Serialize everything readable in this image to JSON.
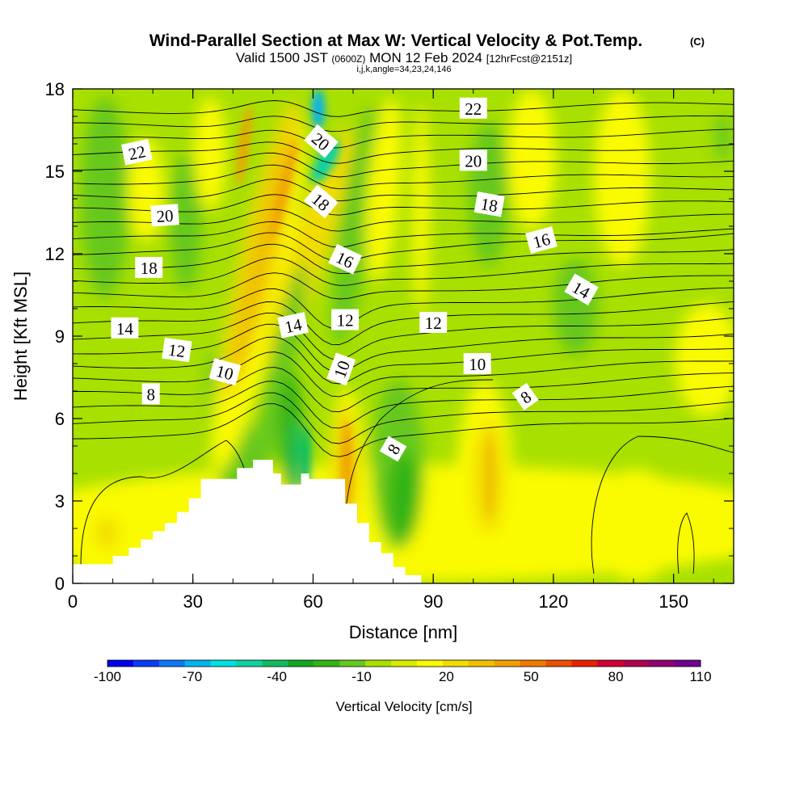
{
  "chart_data": {
    "type": "heatmap",
    "title": "Wind-Parallel Section at Max W: Vertical Velocity & Pot.Temp.",
    "title_mark": "(C)",
    "subtitle_valid": "Valid 1500 JST",
    "subtitle_utc": "(0600Z)",
    "subtitle_date": "MON 12 Feb 2024",
    "subtitle_fcst": "[12hrFcst@2151z]",
    "subtitle_grid": "i,j,k,angle=34,23,24,146",
    "xlabel": "Distance [nm]",
    "ylabel": "Height [Kft MSL]",
    "xlim": [
      0,
      165
    ],
    "ylim": [
      0,
      18
    ],
    "xticks": [
      0,
      30,
      60,
      90,
      120,
      150
    ],
    "yticks": [
      0,
      3,
      6,
      9,
      12,
      15,
      18
    ],
    "colorbar": {
      "label": "Vertical Velocity [cm/s]",
      "ticks": [
        -100,
        -70,
        -40,
        -10,
        20,
        50,
        80,
        110
      ],
      "colors": [
        "#0000ee",
        "#0a3cf5",
        "#0c78f5",
        "#00b4f0",
        "#00e0e0",
        "#10d0a0",
        "#10bc60",
        "#10a820",
        "#32b414",
        "#66c81e",
        "#a8e000",
        "#d8ec00",
        "#fafa00",
        "#f2dc00",
        "#f0c000",
        "#f0a000",
        "#f07800",
        "#ea5000",
        "#e82000",
        "#d00030",
        "#b00050",
        "#900070",
        "#700090"
      ]
    },
    "terrain_kft": [
      [
        0,
        0.7
      ],
      [
        10,
        0.7
      ],
      [
        10,
        1.0
      ],
      [
        14,
        1.0
      ],
      [
        14,
        1.3
      ],
      [
        17,
        1.3
      ],
      [
        17,
        1.6
      ],
      [
        20,
        1.6
      ],
      [
        20,
        1.9
      ],
      [
        23,
        1.9
      ],
      [
        23,
        2.2
      ],
      [
        26,
        2.2
      ],
      [
        26,
        2.6
      ],
      [
        29,
        2.6
      ],
      [
        29,
        3.1
      ],
      [
        32,
        3.1
      ],
      [
        32,
        3.8
      ],
      [
        41,
        3.8
      ],
      [
        41,
        4.2
      ],
      [
        45,
        4.2
      ],
      [
        45,
        4.5
      ],
      [
        50,
        4.5
      ],
      [
        50,
        4.0
      ],
      [
        52,
        4.0
      ],
      [
        52,
        3.6
      ],
      [
        57,
        3.6
      ],
      [
        57,
        4.0
      ],
      [
        59,
        4.0
      ],
      [
        59,
        3.8
      ],
      [
        68,
        3.8
      ],
      [
        68,
        2.9
      ],
      [
        71,
        2.9
      ],
      [
        71,
        2.2
      ],
      [
        74,
        2.2
      ],
      [
        74,
        1.5
      ],
      [
        77,
        1.5
      ],
      [
        77,
        1.1
      ],
      [
        80,
        1.1
      ],
      [
        80,
        0.6
      ],
      [
        83,
        0.6
      ],
      [
        83,
        0.3
      ],
      [
        87,
        0.3
      ],
      [
        87,
        0
      ]
    ],
    "contour_labels": [
      {
        "text": "22",
        "x": 16,
        "y": 15.7,
        "angle": -12
      },
      {
        "text": "20",
        "x": 23,
        "y": 13.4,
        "angle": -4
      },
      {
        "text": "18",
        "x": 19,
        "y": 11.5,
        "angle": 0
      },
      {
        "text": "14",
        "x": 13,
        "y": 9.3,
        "angle": 0
      },
      {
        "text": "12",
        "x": 26,
        "y": 8.5,
        "angle": 8
      },
      {
        "text": "10",
        "x": 38,
        "y": 7.7,
        "angle": 15
      },
      {
        "text": "8",
        "x": 19.5,
        "y": 6.9,
        "angle": 0
      },
      {
        "text": "20",
        "x": 62,
        "y": 16.1,
        "angle": 40
      },
      {
        "text": "18",
        "x": 62,
        "y": 13.9,
        "angle": 40
      },
      {
        "text": "16",
        "x": 68,
        "y": 11.8,
        "angle": 25
      },
      {
        "text": "14",
        "x": 55,
        "y": 9.4,
        "angle": -12
      },
      {
        "text": "12",
        "x": 68,
        "y": 9.6,
        "angle": 0
      },
      {
        "text": "10",
        "x": 67,
        "y": 7.8,
        "angle": -70
      },
      {
        "text": "8",
        "x": 80,
        "y": 4.9,
        "angle": -60
      },
      {
        "text": "22",
        "x": 100,
        "y": 17.3,
        "angle": 0
      },
      {
        "text": "20",
        "x": 100,
        "y": 15.4,
        "angle": 0
      },
      {
        "text": "18",
        "x": 104,
        "y": 13.8,
        "angle": 10
      },
      {
        "text": "16",
        "x": 117,
        "y": 12.5,
        "angle": -15
      },
      {
        "text": "14",
        "x": 127,
        "y": 10.7,
        "angle": 30
      },
      {
        "text": "12",
        "x": 90,
        "y": 9.5,
        "angle": 0
      },
      {
        "text": "10",
        "x": 101,
        "y": 8.0,
        "angle": 0
      },
      {
        "text": "8",
        "x": 113,
        "y": 6.8,
        "angle": -35
      }
    ]
  }
}
